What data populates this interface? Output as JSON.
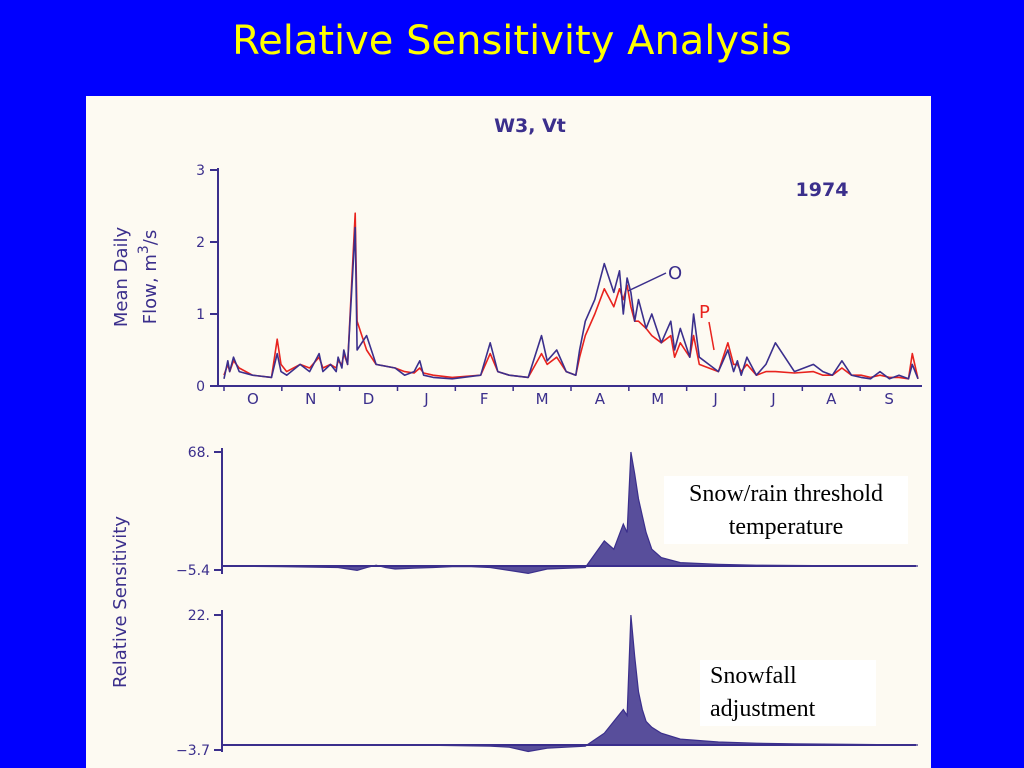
{
  "slide": {
    "title": "Relative Sensitivity Analysis",
    "background": "#0000ff",
    "title_color": "#ffff00"
  },
  "chart_data": [
    {
      "type": "line",
      "title": "W3, Vt",
      "annotation": "1974",
      "ylabel_line1": "Mean Daily",
      "ylabel_line2": "Flow, m",
      "ylabel_sup": "3",
      "ylabel_unit": "/s",
      "ylim": [
        0,
        3
      ],
      "yticks": [
        "0",
        "1",
        "2",
        "3"
      ],
      "categories": [
        "O",
        "N",
        "D",
        "J",
        "F",
        "M",
        "A",
        "M",
        "J",
        "J",
        "A",
        "S"
      ],
      "grid": false,
      "series": [
        {
          "name": "O",
          "color": "#3b2f8c",
          "x": [
            0,
            2,
            3,
            5,
            8,
            15,
            25,
            28,
            30,
            33,
            40,
            45,
            50,
            52,
            56,
            59,
            60,
            62,
            63,
            65,
            69,
            70,
            75,
            80,
            90,
            95,
            100,
            103,
            105,
            110,
            120,
            135,
            140,
            144,
            150,
            160,
            167,
            170,
            175,
            180,
            185,
            187,
            190,
            195,
            200,
            205,
            208,
            210,
            212,
            214,
            216,
            218,
            222,
            225,
            230,
            235,
            237,
            240,
            245,
            247,
            250,
            255,
            260,
            265,
            268,
            270,
            272,
            275,
            280,
            285,
            290,
            300,
            310,
            315,
            320,
            325,
            330,
            335,
            340,
            345,
            350,
            355,
            360,
            362,
            365
          ],
          "y": [
            0.1,
            0.35,
            0.2,
            0.4,
            0.2,
            0.15,
            0.12,
            0.45,
            0.2,
            0.15,
            0.3,
            0.2,
            0.45,
            0.2,
            0.3,
            0.2,
            0.4,
            0.25,
            0.5,
            0.3,
            2.2,
            0.5,
            0.7,
            0.3,
            0.25,
            0.15,
            0.2,
            0.35,
            0.15,
            0.12,
            0.1,
            0.15,
            0.6,
            0.2,
            0.15,
            0.12,
            0.7,
            0.35,
            0.5,
            0.2,
            0.15,
            0.5,
            0.9,
            1.2,
            1.7,
            1.3,
            1.6,
            1.0,
            1.5,
            1.3,
            0.9,
            1.2,
            0.8,
            1.0,
            0.6,
            0.9,
            0.5,
            0.8,
            0.4,
            1.0,
            0.4,
            0.3,
            0.2,
            0.5,
            0.2,
            0.35,
            0.15,
            0.4,
            0.15,
            0.3,
            0.6,
            0.2,
            0.3,
            0.2,
            0.15,
            0.35,
            0.15,
            0.12,
            0.1,
            0.2,
            0.1,
            0.15,
            0.1,
            0.3,
            0.1
          ]
        },
        {
          "name": "P",
          "color": "#e8231e",
          "x": [
            0,
            2,
            3,
            5,
            8,
            15,
            25,
            28,
            30,
            33,
            40,
            45,
            50,
            52,
            56,
            59,
            60,
            62,
            63,
            65,
            69,
            70,
            75,
            80,
            90,
            95,
            100,
            103,
            105,
            110,
            120,
            135,
            140,
            144,
            150,
            160,
            167,
            170,
            175,
            180,
            185,
            187,
            190,
            195,
            200,
            205,
            208,
            210,
            212,
            214,
            216,
            218,
            222,
            225,
            230,
            235,
            237,
            240,
            245,
            247,
            250,
            255,
            260,
            265,
            268,
            270,
            272,
            275,
            280,
            285,
            290,
            300,
            310,
            315,
            320,
            325,
            330,
            335,
            340,
            345,
            350,
            355,
            360,
            362,
            365
          ],
          "y": [
            0.15,
            0.3,
            0.2,
            0.35,
            0.25,
            0.15,
            0.12,
            0.65,
            0.3,
            0.2,
            0.3,
            0.25,
            0.4,
            0.25,
            0.3,
            0.25,
            0.35,
            0.3,
            0.45,
            0.3,
            2.4,
            0.9,
            0.5,
            0.3,
            0.25,
            0.2,
            0.18,
            0.25,
            0.18,
            0.15,
            0.12,
            0.15,
            0.45,
            0.2,
            0.15,
            0.12,
            0.45,
            0.3,
            0.4,
            0.2,
            0.15,
            0.4,
            0.7,
            1.0,
            1.35,
            1.1,
            1.35,
            1.2,
            1.4,
            1.1,
            0.9,
            0.9,
            0.8,
            0.7,
            0.6,
            0.7,
            0.4,
            0.6,
            0.4,
            0.7,
            0.3,
            0.25,
            0.2,
            0.6,
            0.3,
            0.3,
            0.2,
            0.3,
            0.15,
            0.2,
            0.2,
            0.18,
            0.2,
            0.15,
            0.15,
            0.25,
            0.15,
            0.15,
            0.12,
            0.15,
            0.12,
            0.12,
            0.1,
            0.45,
            0.1
          ]
        }
      ],
      "series_labels": {
        "observed": "O",
        "predicted": "P"
      }
    },
    {
      "type": "line",
      "ylabel": "Relative Sensitivity",
      "ymax_label": "68.",
      "ymin_label": "−5.4",
      "ylim": [
        -5.4,
        68
      ],
      "color": "#3b2f8c",
      "x": [
        0,
        30,
        60,
        70,
        75,
        80,
        85,
        90,
        100,
        110,
        120,
        130,
        140,
        150,
        160,
        170,
        190,
        200,
        205,
        210,
        212,
        214,
        216,
        218,
        220,
        222,
        225,
        230,
        240,
        260,
        280,
        300,
        320,
        340,
        360,
        365
      ],
      "y": [
        0,
        -0.5,
        -1,
        -3,
        -1,
        0.5,
        -1,
        -2,
        -1.5,
        -1,
        -0.5,
        -0.5,
        -1,
        -3,
        -5,
        -2,
        -1,
        15,
        10,
        25,
        20,
        68,
        55,
        40,
        30,
        20,
        10,
        5,
        2,
        1,
        0.5,
        0.3,
        0.2,
        0.1,
        0,
        0
      ]
    },
    {
      "type": "line",
      "ymax_label": "22.",
      "ymin_label": "−3.7",
      "ylim": [
        -3.7,
        22
      ],
      "color": "#3b2f8c",
      "x": [
        0,
        60,
        100,
        140,
        150,
        160,
        170,
        180,
        190,
        200,
        205,
        210,
        212,
        214,
        216,
        218,
        220,
        222,
        225,
        230,
        240,
        260,
        280,
        300,
        330,
        365
      ],
      "y": [
        0,
        0,
        0,
        -0.5,
        -1,
        -3,
        -1.5,
        -1,
        -0.5,
        2,
        4,
        6,
        5,
        22,
        15,
        9,
        6,
        4,
        3,
        2,
        1,
        0.5,
        0.3,
        0.2,
        0.1,
        0
      ]
    }
  ],
  "callouts": [
    {
      "line1": "Snow/rain threshold",
      "line2": "temperature"
    },
    {
      "line1": "Snowfall",
      "line2": "adjustment"
    }
  ]
}
